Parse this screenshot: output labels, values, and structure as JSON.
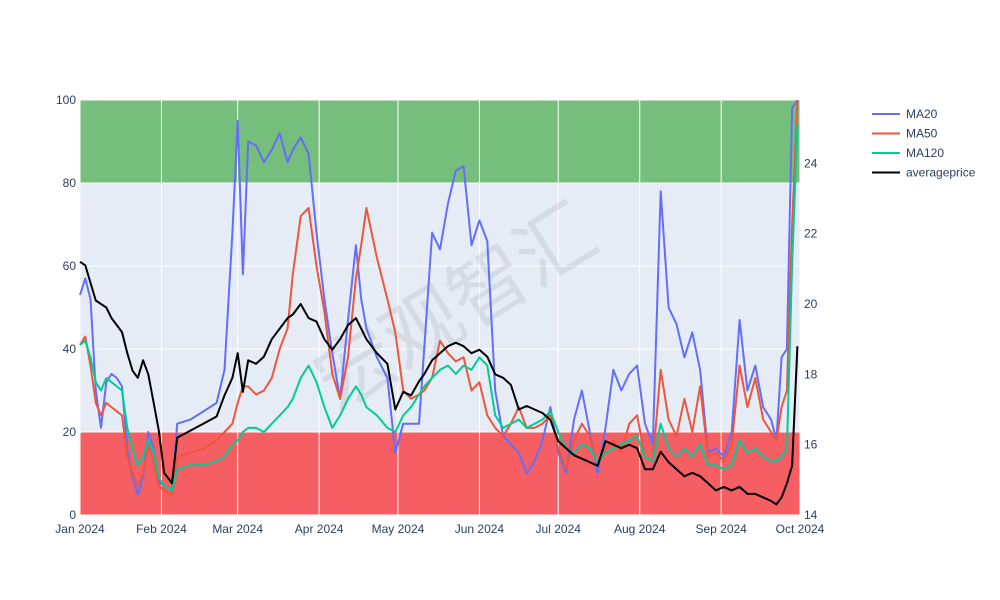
{
  "chart_data": {
    "type": "line",
    "watermark": "宏观智汇",
    "x_ticks": [
      "Jan 2024",
      "Feb 2024",
      "Mar 2024",
      "Apr 2024",
      "May 2024",
      "Jun 2024",
      "Jul 2024",
      "Aug 2024",
      "Sep 2024",
      "Oct 2024"
    ],
    "xlim": [
      "2024-01-01",
      "2024-10-01"
    ],
    "ylim_left": [
      0,
      100
    ],
    "left_ticks": [
      0,
      20,
      40,
      60,
      80,
      100
    ],
    "ylim_right": [
      14,
      25.8
    ],
    "right_ticks": [
      14,
      16,
      18,
      20,
      22,
      24
    ],
    "bands": [
      {
        "from": 80,
        "to": 100,
        "color": "#2ca02c"
      },
      {
        "from": 0,
        "to": 20,
        "color": "#ff0000"
      }
    ],
    "legend_position": "top-right",
    "series": [
      {
        "name": "MA20",
        "color": "#636efa",
        "axis": "left",
        "x": [
          "2024-01-01",
          "2024-01-03",
          "2024-01-05",
          "2024-01-07",
          "2024-01-09",
          "2024-01-11",
          "2024-01-13",
          "2024-01-15",
          "2024-01-17",
          "2024-01-19",
          "2024-01-21",
          "2024-01-23",
          "2024-01-25",
          "2024-01-27",
          "2024-01-29",
          "2024-01-31",
          "2024-02-02",
          "2024-02-05",
          "2024-02-07",
          "2024-02-12",
          "2024-02-17",
          "2024-02-22",
          "2024-02-25",
          "2024-02-28",
          "2024-03-01",
          "2024-03-03",
          "2024-03-05",
          "2024-03-08",
          "2024-03-11",
          "2024-03-14",
          "2024-03-17",
          "2024-03-20",
          "2024-03-22",
          "2024-03-25",
          "2024-03-28",
          "2024-03-31",
          "2024-04-03",
          "2024-04-06",
          "2024-04-09",
          "2024-04-12",
          "2024-04-15",
          "2024-04-17",
          "2024-04-19",
          "2024-04-23",
          "2024-04-27",
          "2024-04-30",
          "2024-05-03",
          "2024-05-06",
          "2024-05-09",
          "2024-05-11",
          "2024-05-14",
          "2024-05-17",
          "2024-05-20",
          "2024-05-23",
          "2024-05-26",
          "2024-05-29",
          "2024-06-01",
          "2024-06-04",
          "2024-06-07",
          "2024-06-10",
          "2024-06-13",
          "2024-06-16",
          "2024-06-19",
          "2024-06-22",
          "2024-06-25",
          "2024-06-28",
          "2024-07-01",
          "2024-07-04",
          "2024-07-07",
          "2024-07-10",
          "2024-07-13",
          "2024-07-16",
          "2024-07-19",
          "2024-07-22",
          "2024-07-25",
          "2024-07-28",
          "2024-07-31",
          "2024-08-03",
          "2024-08-06",
          "2024-08-09",
          "2024-08-12",
          "2024-08-15",
          "2024-08-18",
          "2024-08-21",
          "2024-08-24",
          "2024-08-27",
          "2024-08-30",
          "2024-09-02",
          "2024-09-05",
          "2024-09-08",
          "2024-09-11",
          "2024-09-14",
          "2024-09-17",
          "2024-09-20",
          "2024-09-22",
          "2024-09-24",
          "2024-09-26",
          "2024-09-28",
          "2024-09-30"
        ],
        "y": [
          53,
          57,
          52,
          30,
          21,
          32,
          34,
          33,
          31,
          16,
          9,
          5,
          9,
          20,
          16,
          8,
          7,
          6,
          22,
          23,
          25,
          27,
          35,
          68,
          95,
          58,
          90,
          89,
          85,
          88,
          92,
          85,
          88,
          91,
          87,
          68,
          52,
          39,
          28,
          47,
          65,
          52,
          45,
          38,
          33,
          15,
          22,
          22,
          22,
          40,
          68,
          64,
          75,
          83,
          84,
          65,
          71,
          66,
          30,
          19,
          17,
          15,
          10,
          13,
          18,
          26,
          15,
          10,
          23,
          30,
          20,
          10,
          21,
          35,
          30,
          34,
          36,
          22,
          17,
          78,
          50,
          46,
          38,
          44,
          35,
          15,
          16,
          14,
          20,
          47,
          30,
          36,
          26,
          23,
          18,
          38,
          40,
          98,
          100
        ]
      },
      {
        "name": "MA50",
        "color": "#ef553b",
        "axis": "left",
        "x": [
          "2024-01-01",
          "2024-01-03",
          "2024-01-05",
          "2024-01-07",
          "2024-01-09",
          "2024-01-11",
          "2024-01-13",
          "2024-01-15",
          "2024-01-17",
          "2024-01-19",
          "2024-01-21",
          "2024-01-23",
          "2024-01-25",
          "2024-01-27",
          "2024-01-29",
          "2024-01-31",
          "2024-02-02",
          "2024-02-05",
          "2024-02-07",
          "2024-02-12",
          "2024-02-17",
          "2024-02-22",
          "2024-02-25",
          "2024-02-28",
          "2024-03-01",
          "2024-03-03",
          "2024-03-05",
          "2024-03-08",
          "2024-03-11",
          "2024-03-14",
          "2024-03-17",
          "2024-03-20",
          "2024-03-22",
          "2024-03-25",
          "2024-03-28",
          "2024-03-31",
          "2024-04-03",
          "2024-04-06",
          "2024-04-09",
          "2024-04-12",
          "2024-04-15",
          "2024-04-17",
          "2024-04-19",
          "2024-04-23",
          "2024-04-27",
          "2024-04-30",
          "2024-05-03",
          "2024-05-06",
          "2024-05-09",
          "2024-05-11",
          "2024-05-14",
          "2024-05-17",
          "2024-05-20",
          "2024-05-23",
          "2024-05-26",
          "2024-05-29",
          "2024-06-01",
          "2024-06-04",
          "2024-06-07",
          "2024-06-10",
          "2024-06-13",
          "2024-06-16",
          "2024-06-19",
          "2024-06-22",
          "2024-06-25",
          "2024-06-28",
          "2024-07-01",
          "2024-07-04",
          "2024-07-07",
          "2024-07-10",
          "2024-07-13",
          "2024-07-16",
          "2024-07-19",
          "2024-07-22",
          "2024-07-25",
          "2024-07-28",
          "2024-07-31",
          "2024-08-03",
          "2024-08-06",
          "2024-08-09",
          "2024-08-12",
          "2024-08-15",
          "2024-08-18",
          "2024-08-21",
          "2024-08-24",
          "2024-08-27",
          "2024-08-30",
          "2024-09-02",
          "2024-09-05",
          "2024-09-08",
          "2024-09-11",
          "2024-09-14",
          "2024-09-17",
          "2024-09-20",
          "2024-09-22",
          "2024-09-24",
          "2024-09-26",
          "2024-09-28",
          "2024-09-30"
        ],
        "y": [
          41,
          43,
          36,
          27,
          24,
          27,
          26,
          25,
          24,
          14,
          10,
          7,
          10,
          17,
          13,
          7,
          6,
          5,
          14,
          15,
          16,
          18,
          20,
          22,
          27,
          31,
          31,
          29,
          30,
          33,
          40,
          45,
          58,
          72,
          74,
          60,
          49,
          34,
          28,
          38,
          57,
          65,
          74,
          62,
          52,
          44,
          30,
          28,
          29,
          30,
          33,
          42,
          39,
          37,
          38,
          30,
          32,
          24,
          21,
          19,
          22,
          26,
          21,
          21,
          22,
          24,
          16,
          11,
          18,
          22,
          19,
          12,
          16,
          18,
          15,
          22,
          24,
          14,
          13,
          35,
          23,
          19,
          28,
          20,
          31,
          14,
          15,
          13,
          17,
          36,
          26,
          33,
          23,
          20,
          18,
          26,
          30,
          70,
          100
        ]
      },
      {
        "name": "MA120",
        "color": "#00cc96",
        "axis": "left",
        "x": [
          "2024-01-01",
          "2024-01-03",
          "2024-01-05",
          "2024-01-07",
          "2024-01-09",
          "2024-01-11",
          "2024-01-13",
          "2024-01-15",
          "2024-01-17",
          "2024-01-19",
          "2024-01-21",
          "2024-01-23",
          "2024-01-25",
          "2024-01-27",
          "2024-01-29",
          "2024-01-31",
          "2024-02-02",
          "2024-02-05",
          "2024-02-07",
          "2024-02-12",
          "2024-02-17",
          "2024-02-22",
          "2024-02-25",
          "2024-02-28",
          "2024-03-01",
          "2024-03-03",
          "2024-03-05",
          "2024-03-08",
          "2024-03-11",
          "2024-03-14",
          "2024-03-17",
          "2024-03-20",
          "2024-03-22",
          "2024-03-25",
          "2024-03-28",
          "2024-03-31",
          "2024-04-03",
          "2024-04-06",
          "2024-04-09",
          "2024-04-12",
          "2024-04-15",
          "2024-04-17",
          "2024-04-19",
          "2024-04-23",
          "2024-04-27",
          "2024-04-30",
          "2024-05-03",
          "2024-05-06",
          "2024-05-09",
          "2024-05-11",
          "2024-05-14",
          "2024-05-17",
          "2024-05-20",
          "2024-05-23",
          "2024-05-26",
          "2024-05-29",
          "2024-06-01",
          "2024-06-04",
          "2024-06-07",
          "2024-06-10",
          "2024-06-13",
          "2024-06-16",
          "2024-06-19",
          "2024-06-22",
          "2024-06-25",
          "2024-06-28",
          "2024-07-01",
          "2024-07-04",
          "2024-07-07",
          "2024-07-10",
          "2024-07-13",
          "2024-07-16",
          "2024-07-19",
          "2024-07-22",
          "2024-07-25",
          "2024-07-28",
          "2024-07-31",
          "2024-08-03",
          "2024-08-06",
          "2024-08-09",
          "2024-08-12",
          "2024-08-15",
          "2024-08-18",
          "2024-08-21",
          "2024-08-24",
          "2024-08-27",
          "2024-08-30",
          "2024-09-02",
          "2024-09-05",
          "2024-09-08",
          "2024-09-11",
          "2024-09-14",
          "2024-09-17",
          "2024-09-20",
          "2024-09-22",
          "2024-09-24",
          "2024-09-26",
          "2024-09-28",
          "2024-09-30"
        ],
        "y": [
          41,
          42,
          38,
          32,
          30,
          33,
          32,
          31,
          30,
          21,
          16,
          12,
          14,
          18,
          15,
          9,
          7,
          6,
          11,
          12,
          12,
          13,
          14,
          17,
          18,
          20,
          21,
          21,
          20,
          22,
          24,
          26,
          28,
          33,
          36,
          32,
          26,
          21,
          24,
          28,
          31,
          29,
          26,
          24,
          21,
          20,
          24,
          26,
          29,
          31,
          33,
          35,
          36,
          34,
          36,
          35,
          38,
          36,
          24,
          21,
          22,
          23,
          21,
          22,
          23,
          25,
          20,
          16,
          15,
          17,
          16,
          13,
          15,
          16,
          17,
          18,
          19,
          14,
          13,
          22,
          16,
          14,
          16,
          14,
          17,
          12,
          12,
          11,
          12,
          18,
          15,
          16,
          14,
          13,
          13,
          14,
          16,
          60,
          94
        ]
      },
      {
        "name": "averageprice",
        "color": "#000000",
        "axis": "right",
        "x": [
          "2024-01-01",
          "2024-01-03",
          "2024-01-05",
          "2024-01-07",
          "2024-01-09",
          "2024-01-11",
          "2024-01-13",
          "2024-01-15",
          "2024-01-17",
          "2024-01-19",
          "2024-01-21",
          "2024-01-23",
          "2024-01-25",
          "2024-01-27",
          "2024-01-29",
          "2024-01-31",
          "2024-02-02",
          "2024-02-05",
          "2024-02-07",
          "2024-02-12",
          "2024-02-17",
          "2024-02-22",
          "2024-02-25",
          "2024-02-28",
          "2024-03-01",
          "2024-03-03",
          "2024-03-05",
          "2024-03-08",
          "2024-03-11",
          "2024-03-14",
          "2024-03-17",
          "2024-03-20",
          "2024-03-22",
          "2024-03-25",
          "2024-03-28",
          "2024-03-31",
          "2024-04-03",
          "2024-04-06",
          "2024-04-09",
          "2024-04-12",
          "2024-04-15",
          "2024-04-17",
          "2024-04-19",
          "2024-04-23",
          "2024-04-27",
          "2024-04-30",
          "2024-05-03",
          "2024-05-06",
          "2024-05-09",
          "2024-05-11",
          "2024-05-14",
          "2024-05-17",
          "2024-05-20",
          "2024-05-23",
          "2024-05-26",
          "2024-05-29",
          "2024-06-01",
          "2024-06-04",
          "2024-06-07",
          "2024-06-10",
          "2024-06-13",
          "2024-06-16",
          "2024-06-19",
          "2024-06-22",
          "2024-06-25",
          "2024-06-28",
          "2024-07-01",
          "2024-07-04",
          "2024-07-07",
          "2024-07-10",
          "2024-07-13",
          "2024-07-16",
          "2024-07-19",
          "2024-07-22",
          "2024-07-25",
          "2024-07-28",
          "2024-07-31",
          "2024-08-03",
          "2024-08-06",
          "2024-08-09",
          "2024-08-12",
          "2024-08-15",
          "2024-08-18",
          "2024-08-21",
          "2024-08-24",
          "2024-08-27",
          "2024-08-30",
          "2024-09-02",
          "2024-09-05",
          "2024-09-08",
          "2024-09-11",
          "2024-09-14",
          "2024-09-17",
          "2024-09-20",
          "2024-09-22",
          "2024-09-24",
          "2024-09-26",
          "2024-09-28",
          "2024-09-30"
        ],
        "y": [
          21.2,
          21.1,
          20.6,
          20.1,
          20.0,
          19.9,
          19.6,
          19.4,
          19.2,
          18.6,
          18.1,
          17.9,
          18.4,
          18.0,
          17.2,
          16.4,
          15.2,
          14.9,
          16.2,
          16.4,
          16.6,
          16.8,
          17.4,
          17.9,
          18.6,
          17.5,
          18.4,
          18.3,
          18.5,
          19.0,
          19.3,
          19.6,
          19.7,
          20.0,
          19.6,
          19.5,
          19.0,
          18.7,
          19.0,
          19.4,
          19.6,
          19.3,
          19.0,
          18.6,
          18.3,
          17.0,
          17.5,
          17.4,
          17.8,
          18.0,
          18.4,
          18.6,
          18.8,
          18.9,
          18.8,
          18.6,
          18.7,
          18.5,
          18.0,
          17.9,
          17.7,
          17.0,
          17.1,
          17.0,
          16.9,
          16.7,
          16.1,
          15.9,
          15.7,
          15.6,
          15.5,
          15.4,
          16.1,
          16.0,
          15.9,
          16.0,
          15.9,
          15.3,
          15.3,
          15.8,
          15.5,
          15.3,
          15.1,
          15.2,
          15.1,
          14.9,
          14.7,
          14.8,
          14.7,
          14.8,
          14.6,
          14.6,
          14.5,
          14.4,
          14.3,
          14.5,
          14.9,
          15.4,
          18.8
        ]
      }
    ]
  }
}
